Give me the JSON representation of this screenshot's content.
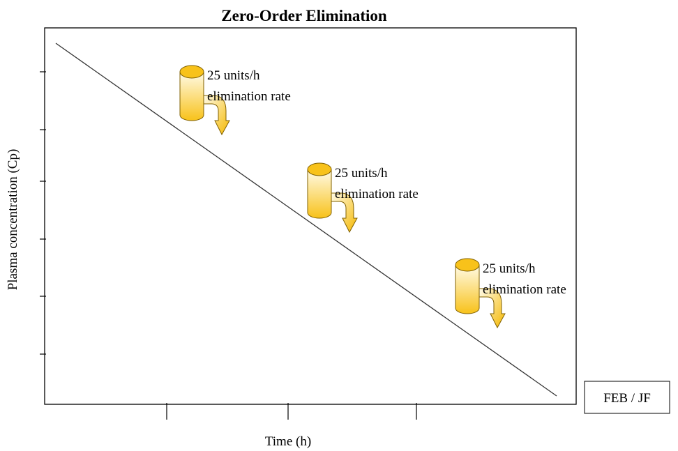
{
  "title": "Zero-Order Elimination",
  "y_axis_label": "Plasma concentration (Cp)",
  "x_axis_label": "Time (h)",
  "annotations": [
    {
      "lines": [
        "25 units/h",
        "elimination rate"
      ]
    },
    {
      "lines": [
        "25 units/h",
        "elimination rate"
      ]
    },
    {
      "lines": [
        "25 units/h",
        "elimination rate"
      ]
    }
  ],
  "signature": "FEB / JF"
}
